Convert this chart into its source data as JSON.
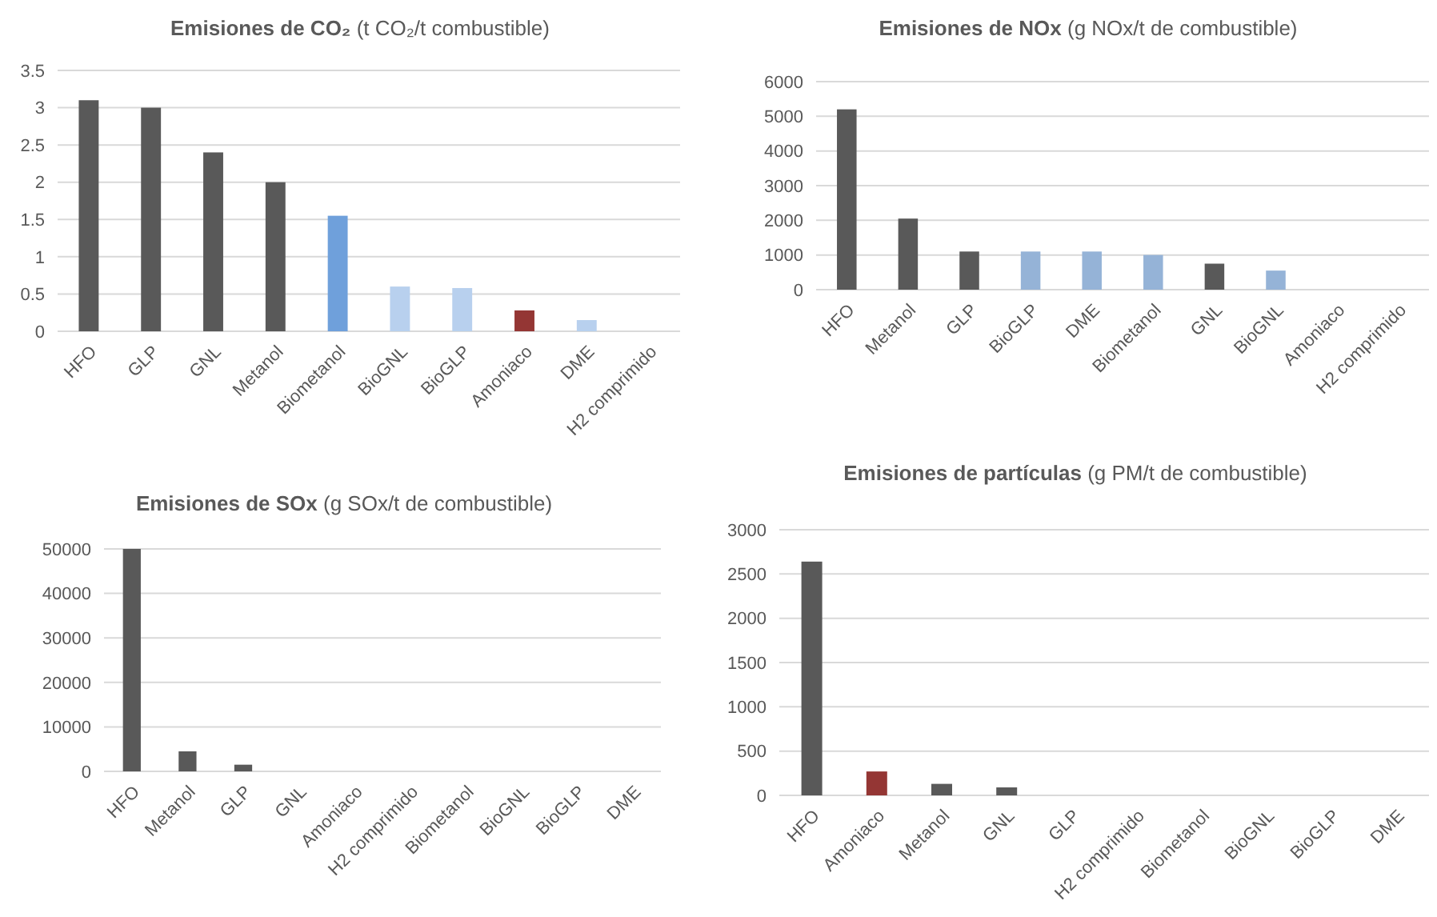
{
  "chart_data": [
    {
      "type": "bar",
      "title": "Emisiones de CO₂ (t CO₂/t combustible)",
      "categories": [
        "HFO",
        "GLP",
        "GNL",
        "Metanol",
        "Biometanol",
        "BioGNL",
        "BioGLP",
        "Amoniaco",
        "DME",
        "H2 comprimido"
      ],
      "values": [
        3.1,
        3.0,
        2.4,
        2.0,
        1.55,
        0.6,
        0.58,
        0.28,
        0.15,
        0
      ],
      "colors": [
        "#595959",
        "#595959",
        "#595959",
        "#595959",
        "#6fa0db",
        "#b8d0ee",
        "#b8d0ee",
        "#943634",
        "#b8d0ee",
        "#b8d0ee"
      ],
      "ylim": [
        0,
        3.5
      ],
      "yticks": [
        0,
        0.5,
        1,
        1.5,
        2,
        2.5,
        3,
        3.5
      ],
      "grid": "y"
    },
    {
      "type": "bar",
      "title": "Emisiones de NOx (g NOx/t de combustible)",
      "categories": [
        "HFO",
        "Metanol",
        "GLP",
        "BioGLP",
        "DME",
        "Biometanol",
        "GNL",
        "BioGNL",
        "Amoniaco",
        "H2 comprimido"
      ],
      "values": [
        5200,
        2050,
        1100,
        1100,
        1100,
        1000,
        750,
        550,
        0,
        0
      ],
      "colors": [
        "#595959",
        "#595959",
        "#595959",
        "#95b3d7",
        "#95b3d7",
        "#95b3d7",
        "#595959",
        "#95b3d7",
        "#595959",
        "#95b3d7"
      ],
      "ylim": [
        0,
        6000
      ],
      "yticks": [
        0,
        1000,
        2000,
        3000,
        4000,
        5000,
        6000
      ],
      "grid": "y"
    },
    {
      "type": "bar",
      "title": "Emisiones de SOx (g SOx/t de combustible)",
      "categories": [
        "HFO",
        "Metanol",
        "GLP",
        "GNL",
        "Amoniaco",
        "H2 comprimido",
        "Biometanol",
        "BioGNL",
        "BioGLP",
        "DME"
      ],
      "values": [
        50000,
        4500,
        1500,
        0,
        0,
        0,
        0,
        0,
        0,
        0
      ],
      "colors": [
        "#595959",
        "#595959",
        "#595959",
        "#595959",
        "#595959",
        "#595959",
        "#595959",
        "#595959",
        "#595959",
        "#595959"
      ],
      "ylim": [
        0,
        50000
      ],
      "yticks": [
        0,
        10000,
        20000,
        30000,
        40000,
        50000
      ],
      "grid": "y"
    },
    {
      "type": "bar",
      "title": "Emisiones de partículas (g PM/t de combustible)",
      "categories": [
        "HFO",
        "Amoniaco",
        "Metanol",
        "GNL",
        "GLP",
        "H2 comprimido",
        "Biometanol",
        "BioGNL",
        "BioGLP",
        "DME"
      ],
      "values": [
        2640,
        270,
        130,
        90,
        0,
        0,
        0,
        0,
        0,
        0
      ],
      "colors": [
        "#595959",
        "#943634",
        "#595959",
        "#595959",
        "#595959",
        "#595959",
        "#595959",
        "#595959",
        "#595959",
        "#595959"
      ],
      "ylim": [
        0,
        3000
      ],
      "yticks": [
        0,
        500,
        1000,
        1500,
        2000,
        2500,
        3000
      ],
      "grid": "y"
    }
  ]
}
